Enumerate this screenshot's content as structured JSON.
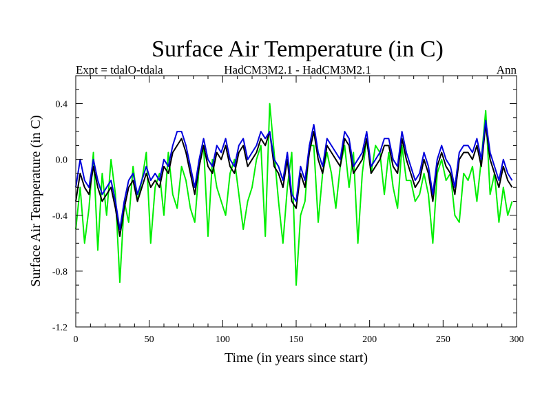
{
  "chart_data": {
    "type": "line",
    "title": "Surface Air Temperature (in C)",
    "subtitle_left": "Expt = tdalO-tdala",
    "subtitle_center": "HadCM3M2.1 - HadCM3M2.1",
    "subtitle_right": "Ann",
    "xlabel": "Time (in years since start)",
    "ylabel": "Surface Air Temperature (in C)",
    "xlim": [
      0,
      300
    ],
    "ylim": [
      -1.2,
      0.6
    ],
    "xticks": [
      0,
      50,
      100,
      150,
      200,
      250,
      300
    ],
    "xtick_labels": [
      "0",
      "50",
      "100",
      "150",
      "200",
      "250",
      "300"
    ],
    "yticks": [
      -1.2,
      -0.8,
      -0.4,
      0.0,
      0.4
    ],
    "ytick_labels": [
      "-1.2",
      "-0.8",
      "-0.4",
      "0.0",
      "0.4"
    ],
    "grid": false,
    "series": [
      {
        "name": "green",
        "color": "#00ee00",
        "x_start": 0,
        "x_step": 3,
        "values": [
          -0.5,
          -0.2,
          -0.6,
          -0.35,
          0.05,
          -0.65,
          -0.1,
          -0.4,
          0.0,
          -0.25,
          -0.88,
          -0.3,
          -0.45,
          -0.05,
          -0.3,
          -0.15,
          0.05,
          -0.6,
          -0.2,
          -0.1,
          -0.4,
          0.05,
          -0.25,
          -0.35,
          -0.05,
          -0.15,
          -0.35,
          -0.45,
          -0.05,
          0.1,
          -0.55,
          0.0,
          -0.2,
          -0.3,
          -0.4,
          -0.1,
          0.0,
          -0.25,
          -0.5,
          -0.3,
          -0.2,
          0.0,
          0.1,
          -0.55,
          0.4,
          0.05,
          -0.3,
          -0.6,
          -0.2,
          0.05,
          -0.9,
          -0.4,
          -0.3,
          0.1,
          0.1,
          -0.45,
          -0.1,
          0.05,
          -0.1,
          -0.35,
          -0.05,
          0.1,
          -0.2,
          0.05,
          -0.6,
          -0.1,
          0.15,
          -0.1,
          0.1,
          0.05,
          -0.25,
          0.05,
          -0.2,
          -0.35,
          0.1,
          -0.15,
          -0.15,
          -0.3,
          -0.25,
          -0.1,
          -0.25,
          -0.6,
          -0.1,
          0.0,
          -0.15,
          -0.1,
          -0.4,
          -0.45,
          -0.1,
          -0.15,
          -0.05,
          -0.3,
          0.0,
          0.35,
          -0.25,
          -0.1,
          -0.45,
          -0.2,
          -0.4,
          -0.3
        ]
      },
      {
        "name": "black",
        "color": "#000000",
        "x_start": 0,
        "x_step": 3,
        "values": [
          -0.3,
          -0.1,
          -0.2,
          -0.25,
          -0.05,
          -0.2,
          -0.3,
          -0.25,
          -0.2,
          -0.35,
          -0.55,
          -0.35,
          -0.2,
          -0.15,
          -0.3,
          -0.2,
          -0.1,
          -0.2,
          -0.15,
          -0.2,
          -0.05,
          -0.1,
          0.05,
          0.1,
          0.15,
          0.05,
          -0.1,
          -0.25,
          -0.05,
          0.1,
          -0.05,
          -0.1,
          0.05,
          0.0,
          0.1,
          -0.05,
          -0.1,
          0.05,
          0.1,
          -0.05,
          0.0,
          0.05,
          0.15,
          0.1,
          0.2,
          -0.05,
          -0.1,
          -0.2,
          0.0,
          -0.3,
          -0.35,
          -0.1,
          -0.2,
          0.05,
          0.2,
          0.0,
          -0.1,
          0.1,
          0.05,
          0.0,
          -0.05,
          0.15,
          0.1,
          -0.1,
          -0.05,
          0.0,
          0.15,
          -0.1,
          -0.05,
          0.0,
          0.1,
          0.1,
          -0.05,
          -0.1,
          0.15,
          0.0,
          -0.1,
          -0.2,
          -0.15,
          0.0,
          -0.1,
          -0.3,
          -0.05,
          0.05,
          -0.05,
          -0.1,
          -0.25,
          0.0,
          0.05,
          0.05,
          0.0,
          0.1,
          -0.05,
          0.25,
          0.0,
          -0.1,
          -0.2,
          -0.05,
          -0.15,
          -0.2
        ]
      },
      {
        "name": "blue",
        "color": "#0000dd",
        "x_start": 0,
        "x_step": 3,
        "values": [
          -0.2,
          0.0,
          -0.15,
          -0.2,
          0.0,
          -0.15,
          -0.25,
          -0.2,
          -0.15,
          -0.3,
          -0.5,
          -0.3,
          -0.15,
          -0.1,
          -0.25,
          -0.15,
          -0.05,
          -0.15,
          -0.1,
          -0.15,
          0.0,
          -0.05,
          0.1,
          0.2,
          0.2,
          0.1,
          -0.05,
          -0.2,
          0.0,
          0.15,
          0.0,
          -0.05,
          0.1,
          0.05,
          0.15,
          0.0,
          -0.05,
          0.1,
          0.15,
          0.0,
          0.05,
          0.1,
          0.2,
          0.15,
          0.2,
          0.0,
          -0.05,
          -0.15,
          0.05,
          -0.25,
          -0.3,
          -0.05,
          -0.15,
          0.1,
          0.25,
          0.05,
          -0.05,
          0.15,
          0.1,
          0.05,
          0.0,
          0.2,
          0.15,
          -0.05,
          0.0,
          0.05,
          0.2,
          -0.05,
          0.0,
          0.05,
          0.15,
          0.15,
          0.0,
          -0.05,
          0.2,
          0.05,
          -0.05,
          -0.15,
          -0.1,
          0.05,
          -0.05,
          -0.25,
          0.0,
          0.1,
          0.0,
          -0.05,
          -0.2,
          0.05,
          0.1,
          0.1,
          0.05,
          0.15,
          0.0,
          0.28,
          0.05,
          -0.05,
          -0.15,
          0.0,
          -0.1,
          -0.15
        ]
      }
    ]
  }
}
